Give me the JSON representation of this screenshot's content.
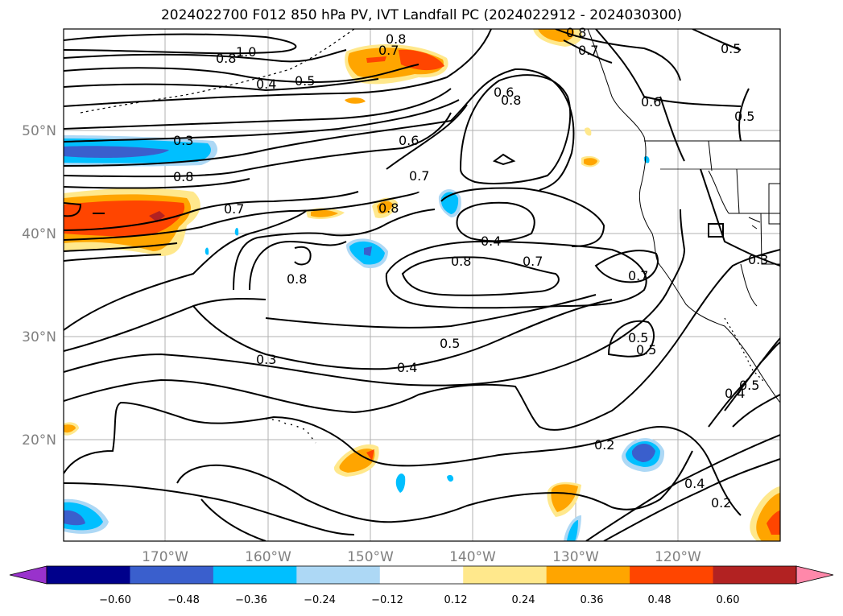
{
  "title": "2024022700 F012 850 hPa PV, IVT Landfall PC (2024022912 - 2024030300)",
  "lat_labels": [
    "50°N",
    "40°N",
    "30°N",
    "20°N"
  ],
  "lon_labels": [
    "170°W",
    "160°W",
    "150°W",
    "140°W",
    "130°W",
    "120°W"
  ],
  "colorbar": {
    "ticks": [
      "−0.60",
      "−0.48",
      "−0.36",
      "−0.24",
      "−0.12",
      "0.12",
      "0.24",
      "0.36",
      "0.48",
      "0.60"
    ],
    "colors": [
      "#9932cc",
      "#00008b",
      "#3a5fcd",
      "#00bfff",
      "#add8f5",
      "#ffffff",
      "#ffe88c",
      "#ffa500",
      "#ff4500",
      "#b22222",
      "#ff88aa"
    ]
  },
  "contour_labels": {
    "c1": "1.0",
    "c2": "0.8",
    "c3": "0.4",
    "c4": "0.5",
    "c5": "0.8",
    "c6": "0.7",
    "c7": "0.8",
    "c8": "0.7",
    "c9": "0.5",
    "c10": "0.8",
    "c11": "0.6",
    "c12": "0.5",
    "c13": "0.3",
    "c14": "0.8",
    "c15": "0.6",
    "c16": "0.7",
    "c17": "0.7",
    "c18": "0.8",
    "c19": "0.4",
    "c20": "0.8",
    "c21": "0.7",
    "c22": "0.8",
    "c23": "0.7",
    "c24": "0.3",
    "c25": "0.5",
    "c26": "0.4",
    "c27": "0.3",
    "c28": "0.5",
    "c29": "0.4",
    "c30": "0.5",
    "c31": "0.2",
    "c32": "0.4",
    "c33": "0.2",
    "c34": "0.6",
    "c35": "0.5"
  },
  "colors": {
    "grid": "#b0b0b0",
    "contour": "#000000",
    "frame": "#000000"
  }
}
